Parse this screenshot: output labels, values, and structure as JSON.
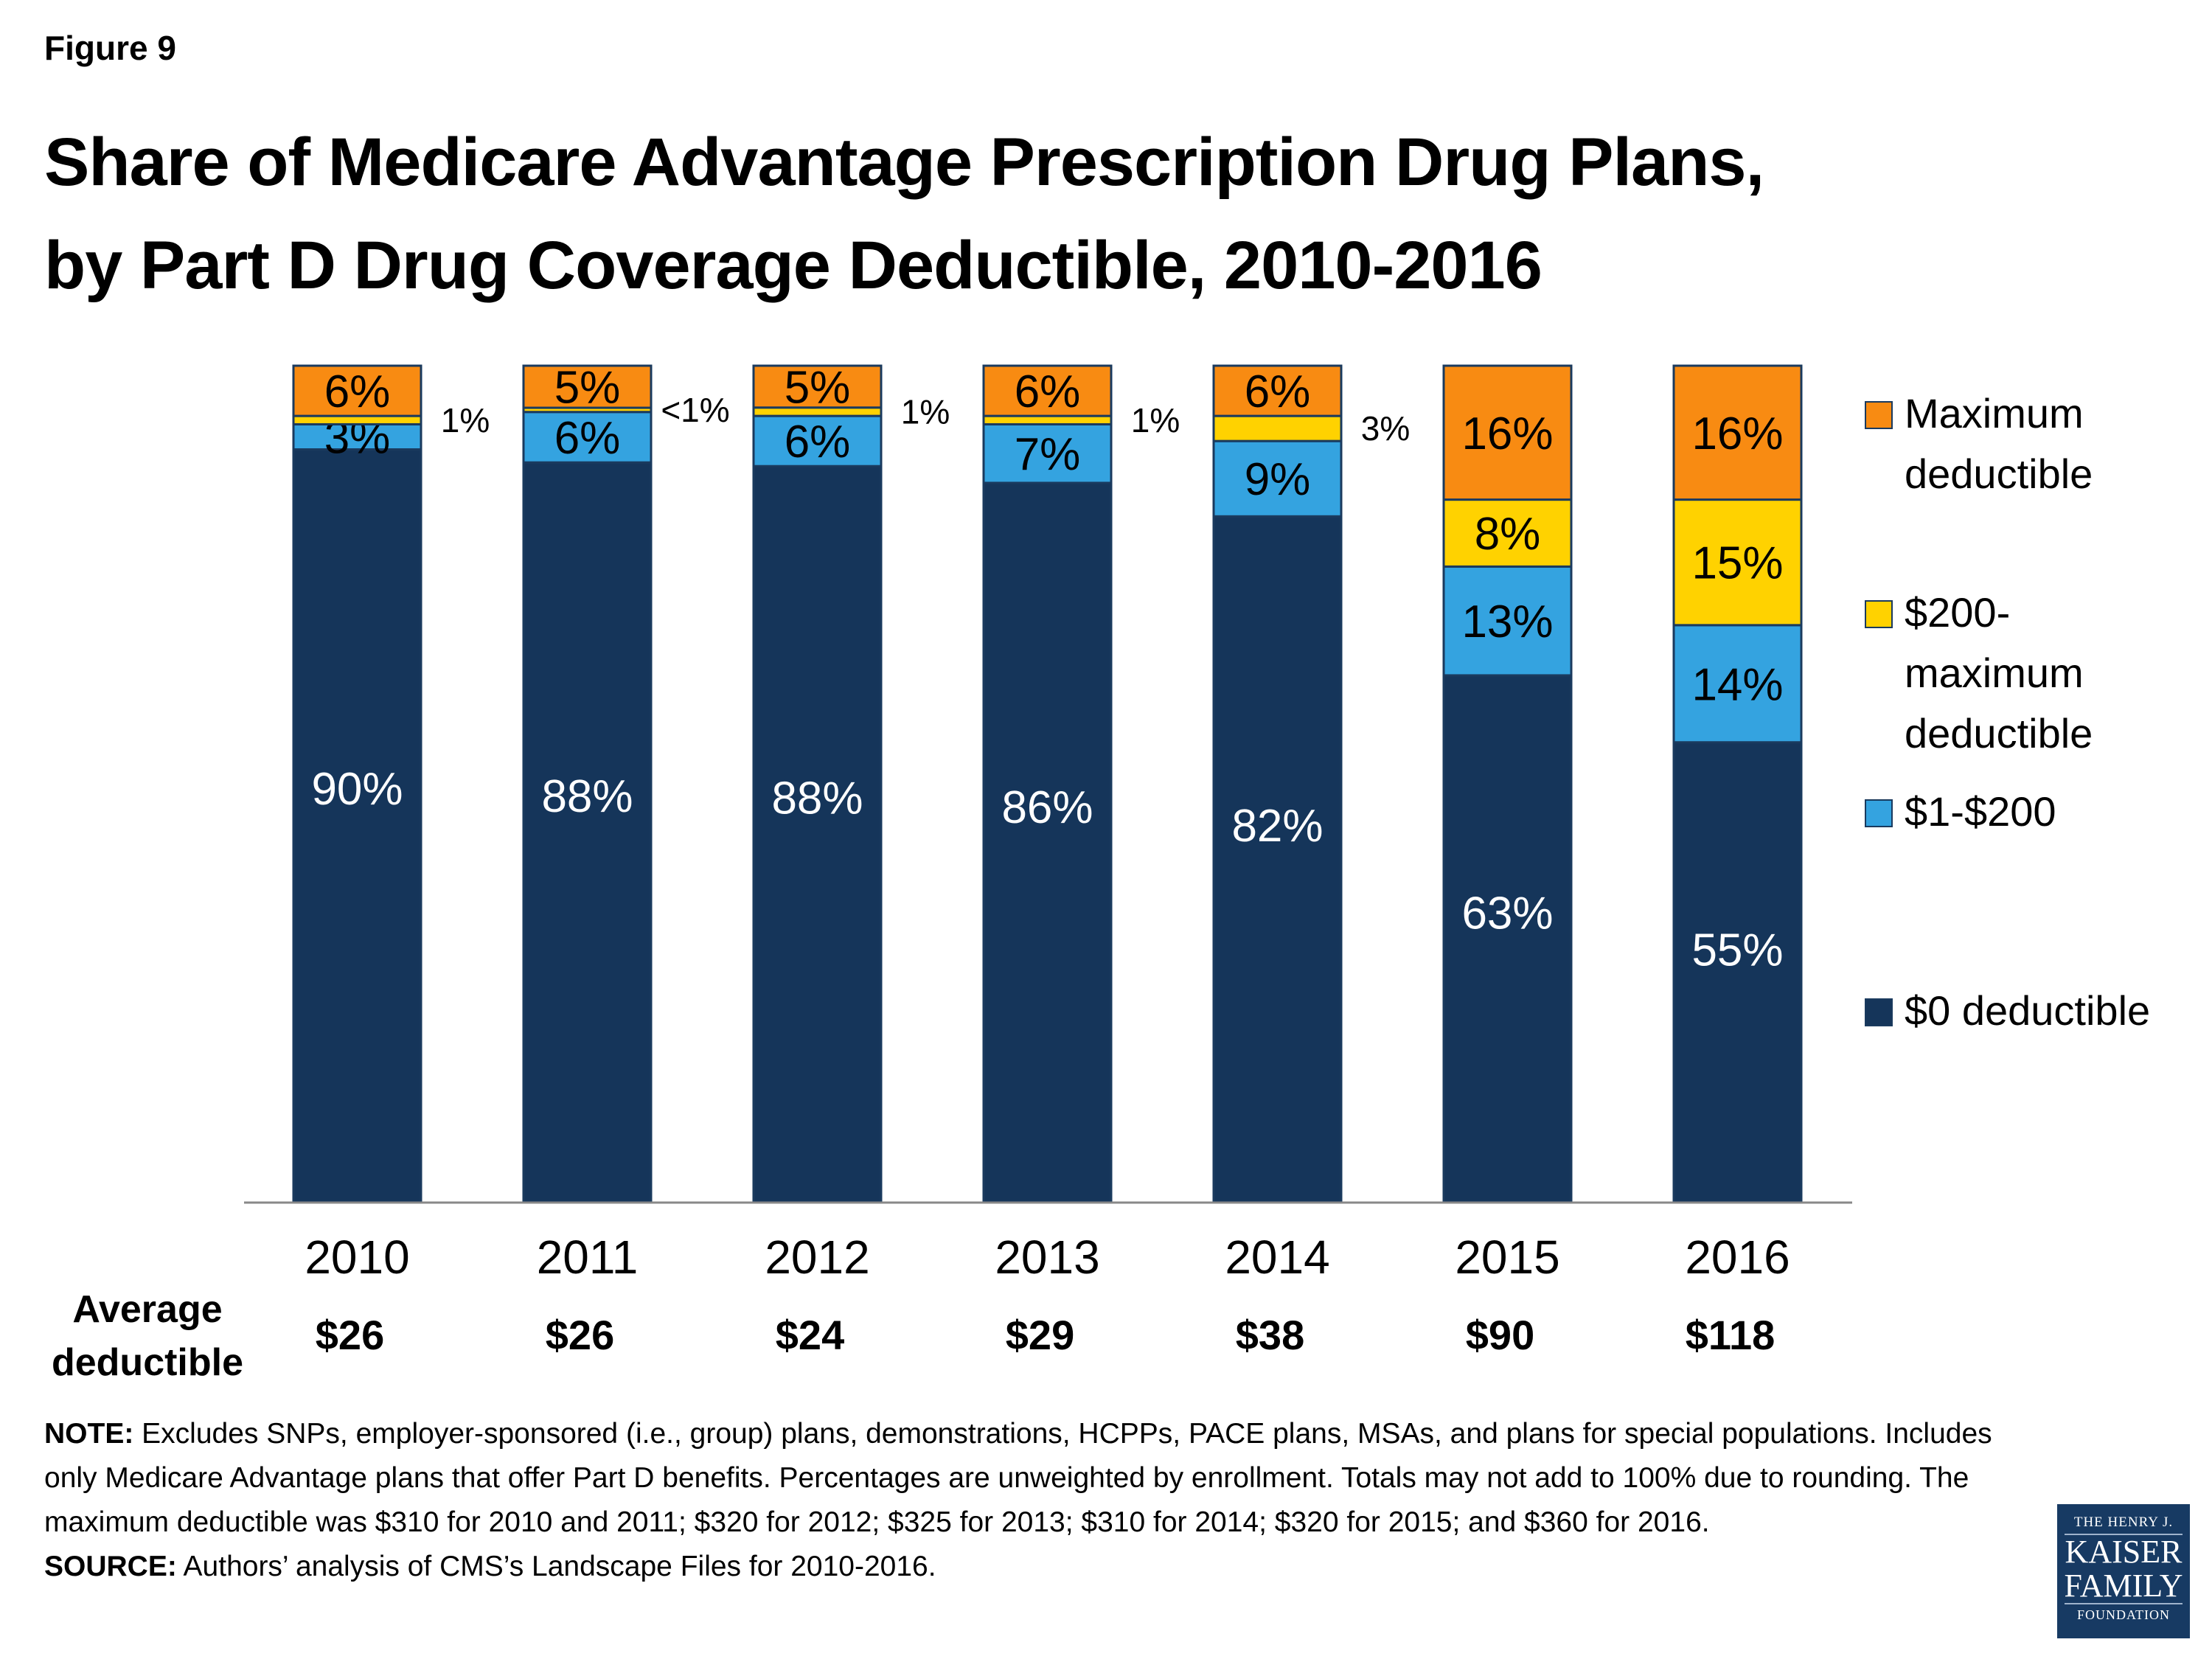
{
  "figure_label": "Figure 9",
  "title_lines": [
    "Share of Medicare Advantage Prescription Drug Plans,",
    "by Part D Drug Coverage Deductible, 2010-2016"
  ],
  "average_deductible_label": [
    "Average",
    "deductible"
  ],
  "chart_data": {
    "type": "bar",
    "stacked": true,
    "title": "Share of Medicare Advantage Prescription Drug Plans, by Part D Drug Coverage Deductible, 2010-2016",
    "categories": [
      "2010",
      "2011",
      "2012",
      "2013",
      "2014",
      "2015",
      "2016"
    ],
    "series": [
      {
        "name": "$0 deductible",
        "color": "#15355a",
        "values": [
          90,
          88,
          88,
          86,
          82,
          63,
          55
        ],
        "labels": [
          "90%",
          "88%",
          "88%",
          "86%",
          "82%",
          "63%",
          "55%"
        ]
      },
      {
        "name": "$1-$200",
        "color": "#34a3e0",
        "values": [
          3,
          6,
          6,
          7,
          9,
          13,
          14
        ],
        "labels": [
          "3%",
          "6%",
          "6%",
          "7%",
          "9%",
          "13%",
          "14%"
        ]
      },
      {
        "name": "$200-maximum deductible",
        "color": "#ffd200",
        "values": [
          1,
          0.5,
          1,
          1,
          3,
          8,
          15
        ],
        "labels": [
          "1%",
          "<1%",
          "1%",
          "1%",
          "3%",
          "8%",
          "15%"
        ]
      },
      {
        "name": "Maximum deductible",
        "color": "#f88b12",
        "values": [
          6,
          5,
          5,
          6,
          6,
          16,
          16
        ],
        "labels": [
          "6%",
          "5%",
          "5%",
          "6%",
          "6%",
          "16%",
          "16%"
        ]
      }
    ],
    "average_deductible": [
      "$26",
      "$26",
      "$24",
      "$29",
      "$38",
      "$90",
      "$118"
    ],
    "ylim": [
      0,
      100
    ],
    "grid": false,
    "legend_position": "right"
  },
  "legend": [
    {
      "lines": [
        "Maximum",
        "deductible"
      ],
      "color": "#f88b12"
    },
    {
      "lines": [
        "$200-",
        "maximum",
        "deductible"
      ],
      "color": "#ffd200"
    },
    {
      "lines": [
        "$1-$200"
      ],
      "color": "#34a3e0"
    },
    {
      "lines": [
        "$0 deductible"
      ],
      "color": "#15355a"
    }
  ],
  "note": {
    "note_label": "NOTE:",
    "note_text": " Excludes SNPs, employer-sponsored (i.e., group) plans, demonstrations, HCPPs, PACE plans, MSAs, and plans for special populations.  Includes only Medicare Advantage plans that offer Part D benefits. Percentages are unweighted by enrollment. Totals may not add to 100% due to rounding. The maximum deductible was $310 for 2010 and 2011; $320  for 2012; $325 for 2013; $310 for 2014; $320 for 2015; and $360 for 2016.",
    "source_label": "SOURCE:",
    "source_text": "  Authors’ analysis of CMS’s Landscape Files for 2010-2016."
  },
  "logo": {
    "line1": "THE HENRY J.",
    "line2": "KAISER",
    "line3": "FAMILY",
    "line4": "FOUNDATION"
  }
}
